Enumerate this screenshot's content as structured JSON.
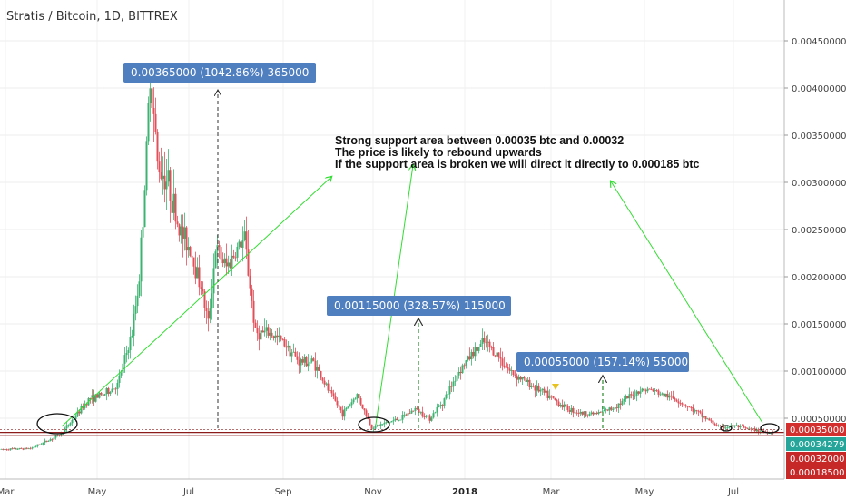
{
  "chart_data": {
    "type": "candlestick",
    "title": "Stratis / Bitcoin, 1D, BITTREX",
    "x_ticks": [
      "Mar",
      "May",
      "Jul",
      "Sep",
      "Nov",
      "2018",
      "Mar",
      "May",
      "Jul"
    ],
    "y_ticks": [
      "0.00450000",
      "0.00400000",
      "0.00350000",
      "0.00300000",
      "0.00250000",
      "0.00200000",
      "0.00150000",
      "0.00100000",
      "0.00050000"
    ],
    "ylim": [
      0.00012,
      0.0048
    ],
    "price_tags": [
      {
        "label": "0.00035000",
        "value": 0.00035,
        "color": "#d32f2f"
      },
      {
        "label": "0.00034279",
        "value": 0.00034279,
        "color": "#26a69a"
      },
      {
        "label": "0.00032000",
        "value": 0.00032,
        "color": "#c62828"
      },
      {
        "label": "0.00018500",
        "value": 0.000185,
        "color": "#c62828"
      }
    ],
    "horizontal_lines": [
      0.00035,
      0.00032
    ],
    "annotation_text": [
      "Strong support area between 0.00035 btc and 0.00032",
      "The price is likely to rebound upwards",
      "If the support area is broken we will direct it directly to 0.000185 btc"
    ],
    "measure_labels": [
      {
        "label": "0.00365000 (1042.86%) 365000"
      },
      {
        "label": "0.00115000 (328.57%) 115000"
      },
      {
        "label": "0.00055000 (157.14%) 55000"
      }
    ],
    "price_path_monthly": [
      {
        "month": "2017-02",
        "close": 0.0002
      },
      {
        "month": "2017-03",
        "close": 0.0003
      },
      {
        "month": "2017-04",
        "close": 0.0007
      },
      {
        "month": "2017-05",
        "close": 0.0012
      },
      {
        "month": "2017-06",
        "close": 0.0033
      },
      {
        "month": "2017-07",
        "close": 0.0019
      },
      {
        "month": "2017-08",
        "close": 0.0016
      },
      {
        "month": "2017-09",
        "close": 0.001
      },
      {
        "month": "2017-10",
        "close": 0.0006
      },
      {
        "month": "2017-11",
        "close": 0.0005
      },
      {
        "month": "2017-12",
        "close": 0.0009
      },
      {
        "month": "2018-01",
        "close": 0.0012
      },
      {
        "month": "2018-02",
        "close": 0.0009
      },
      {
        "month": "2018-03",
        "close": 0.00055
      },
      {
        "month": "2018-04",
        "close": 0.0007
      },
      {
        "month": "2018-05",
        "close": 0.0008
      },
      {
        "month": "2018-06",
        "close": 0.0005
      },
      {
        "month": "2018-07",
        "close": 0.00036
      }
    ],
    "colors": {
      "up": "#3cb371",
      "down": "#e0505a",
      "trend": "#33dd33",
      "measure_box": "#4f7fbf"
    }
  }
}
